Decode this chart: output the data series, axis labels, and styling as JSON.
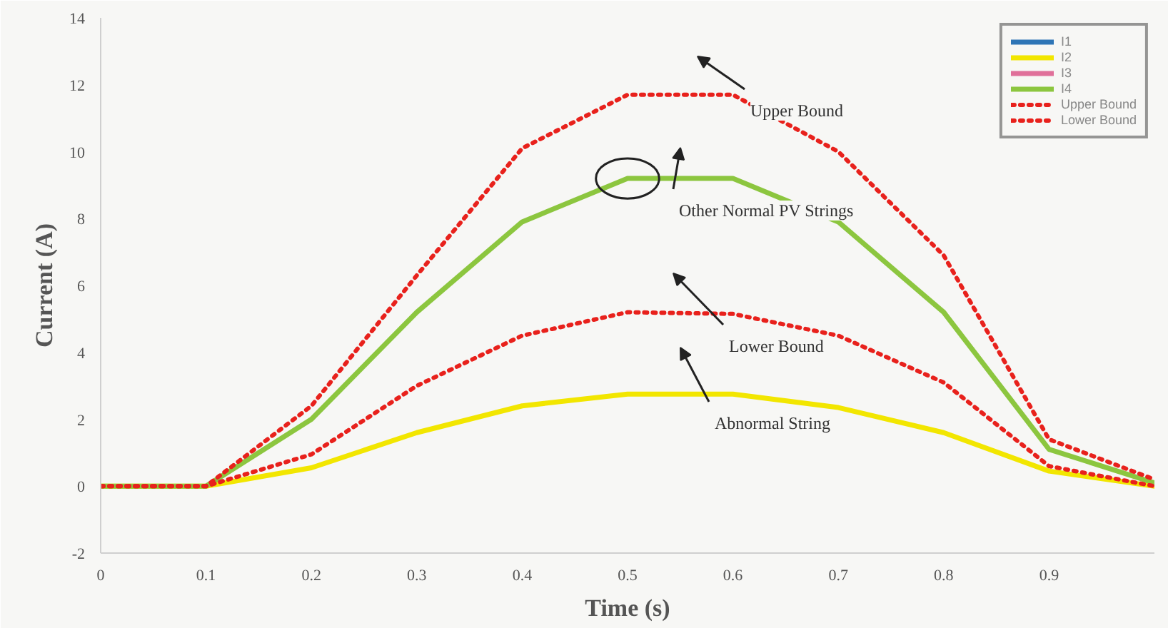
{
  "chart_data": {
    "type": "line",
    "xlabel": "Time (s)",
    "ylabel": "Current (A)",
    "x": [
      0,
      0.1,
      0.2,
      0.3,
      0.4,
      0.5,
      0.6,
      0.7,
      0.8,
      0.9,
      1.0
    ],
    "xlim": [
      0,
      1.0
    ],
    "xticks": [
      0,
      0.1,
      0.2,
      0.3,
      0.4,
      0.5,
      0.6,
      0.7,
      0.8,
      0.9
    ],
    "ylim": [
      -2,
      14
    ],
    "yticks": [
      -2,
      0,
      2,
      4,
      6,
      8,
      10,
      12,
      14
    ],
    "grid": false,
    "legend": "top right",
    "marker": "none",
    "series": [
      {
        "name": "I1",
        "color": "#2e75b6",
        "line_style": "solid",
        "values": [
          null,
          null,
          null,
          null,
          null,
          null,
          null,
          null,
          null,
          null,
          null
        ]
      },
      {
        "name": "I2",
        "color": "#f2e600",
        "line_style": "solid",
        "values": [
          0,
          0,
          0.55,
          1.6,
          2.4,
          2.75,
          2.75,
          2.35,
          1.6,
          0.45,
          0
        ]
      },
      {
        "name": "I3",
        "color": "#e0709a",
        "line_style": "solid",
        "values": [
          null,
          null,
          null,
          null,
          null,
          null,
          null,
          null,
          null,
          null,
          null
        ]
      },
      {
        "name": "I4",
        "color": "#8cc63f",
        "line_style": "solid",
        "values": [
          0,
          0,
          2.0,
          5.2,
          7.9,
          9.2,
          9.2,
          7.9,
          5.2,
          1.1,
          0.1
        ]
      },
      {
        "name": "Upper Bound",
        "color": "#e8211c",
        "line_style": "dotted",
        "values": [
          0,
          0,
          2.4,
          6.3,
          10.1,
          11.7,
          11.7,
          10.0,
          6.9,
          1.4,
          0.2
        ]
      },
      {
        "name": "Lower Bound",
        "color": "#e8211c",
        "line_style": "dotted",
        "values": [
          0,
          0,
          0.95,
          3.0,
          4.5,
          5.2,
          5.15,
          4.5,
          3.1,
          0.6,
          0
        ]
      }
    ],
    "annotations": [
      "Upper Bound",
      "Other Normal PV Strings",
      "Lower Bound",
      "Abnormal String"
    ]
  }
}
